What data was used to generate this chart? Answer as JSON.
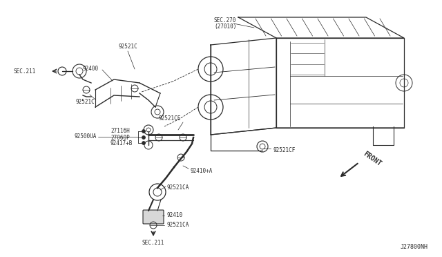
{
  "bg_color": "#ffffff",
  "fig_width": 6.4,
  "fig_height": 3.72,
  "dpi": 100,
  "diagram_code": "J27800NH",
  "front_label": "FRONT",
  "sec_270_label": "SEC.270\n(27010)",
  "text_color": "#2a2a2a",
  "line_color": "#2a2a2a",
  "label_fontsize": 5.5,
  "mono_font": "DejaVu Sans Mono"
}
